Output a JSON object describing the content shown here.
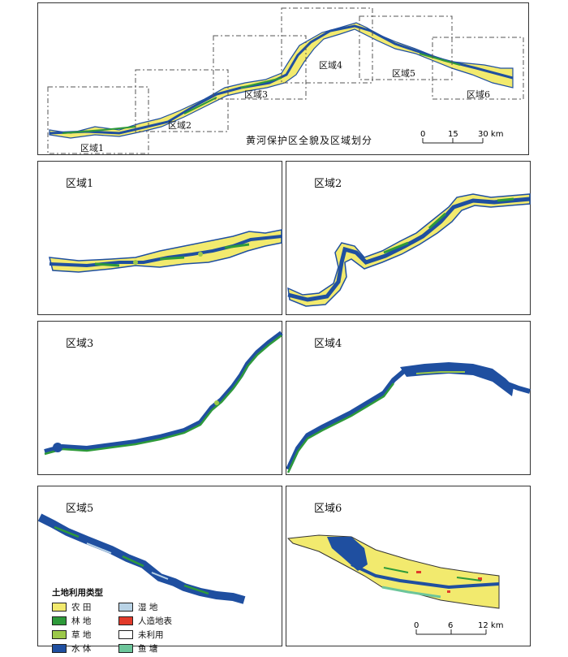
{
  "overview": {
    "title": "黄河保护区全貌及区域划分",
    "zones": [
      "区域1",
      "区域2",
      "区域3",
      "区域4",
      "区域5",
      "区域6"
    ],
    "scale": {
      "ticks": [
        "0",
        "15",
        "30 km"
      ]
    }
  },
  "panels": [
    {
      "label": "区域1"
    },
    {
      "label": "区域2"
    },
    {
      "label": "区域3"
    },
    {
      "label": "区域4"
    },
    {
      "label": "区域5"
    },
    {
      "label": "区域6"
    }
  ],
  "legend": {
    "title": "土地利用类型",
    "items": [
      {
        "label": "农 田",
        "color": "#f2ea6e"
      },
      {
        "label": "湿 地",
        "color": "#b9d3e6"
      },
      {
        "label": "林 地",
        "color": "#2e9a3a"
      },
      {
        "label": "人造地表",
        "color": "#e23a2a"
      },
      {
        "label": "草 地",
        "color": "#9cc84a"
      },
      {
        "label": "未利用",
        "color": "#ffffff"
      },
      {
        "label": "水 体",
        "color": "#1f4fa0"
      },
      {
        "label": "鱼 塘",
        "color": "#6cc59a"
      }
    ]
  },
  "detail_scale": {
    "ticks": [
      "0",
      "6",
      "12 km"
    ]
  }
}
